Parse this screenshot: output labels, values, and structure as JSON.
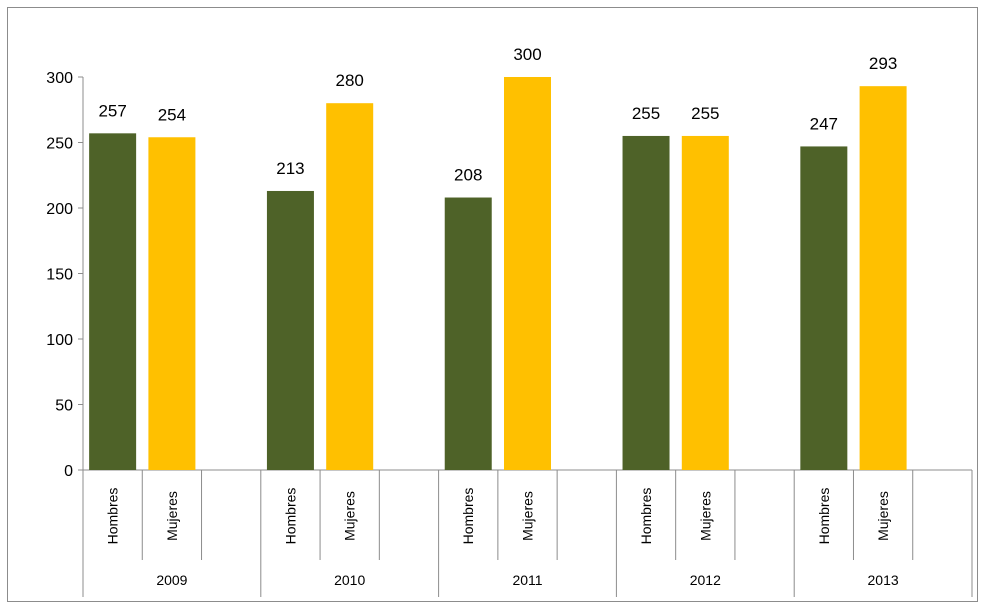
{
  "chart_data": {
    "type": "bar",
    "title": "",
    "xlabel": "",
    "ylabel": "",
    "ylim": [
      0,
      300
    ],
    "yticks": [
      0,
      50,
      100,
      150,
      200,
      250,
      300
    ],
    "grid": false,
    "groups": [
      {
        "label": "2009",
        "categories": [
          "Hombres",
          "Mujeres"
        ],
        "values": [
          257,
          254
        ]
      },
      {
        "label": "2010",
        "categories": [
          "Hombres",
          "Mujeres"
        ],
        "values": [
          213,
          280
        ]
      },
      {
        "label": "2011",
        "categories": [
          "Hombres",
          "Mujeres"
        ],
        "values": [
          208,
          300
        ]
      },
      {
        "label": "2012",
        "categories": [
          "Hombres",
          "Mujeres"
        ],
        "values": [
          255,
          255
        ]
      },
      {
        "label": "2013",
        "categories": [
          "Hombres",
          "Mujeres"
        ],
        "values": [
          247,
          293
        ]
      }
    ],
    "colors": {
      "Hombres": "#4e6228",
      "Mujeres": "#ffc000"
    }
  }
}
